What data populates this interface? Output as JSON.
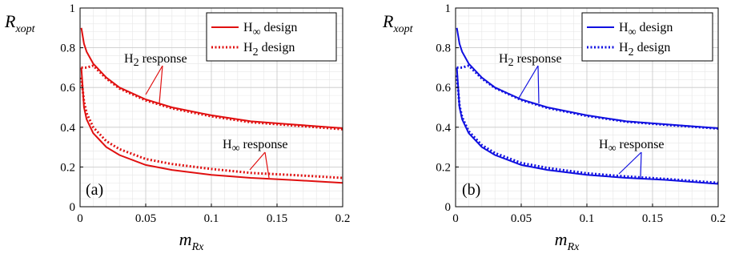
{
  "chart_data": [
    {
      "type": "line",
      "panel_label": "(a)",
      "ylabel": "R",
      "ylabel_sub": "xopt",
      "xlabel": "m",
      "xlabel_sub": "Rx",
      "xlim": [
        0,
        0.2
      ],
      "ylim": [
        0,
        1
      ],
      "x_ticks": [
        "0",
        "0.05",
        "0.1",
        "0.15",
        "0.2"
      ],
      "y_ticks": [
        "0",
        "0.2",
        "0.4",
        "0.6",
        "0.8",
        "1"
      ],
      "grid": true,
      "legend": {
        "placement": "top-right",
        "entries": [
          {
            "prefix": "H",
            "sub": "∞",
            "suffix": " design",
            "style": "solid"
          },
          {
            "prefix": "H",
            "sub": "2",
            "suffix": " design",
            "style": "dotted"
          }
        ]
      },
      "annotations": [
        {
          "prefix": "H",
          "sub": "2",
          "suffix": " response"
        },
        {
          "prefix": "H",
          "sub": "∞",
          "suffix": " response"
        }
      ],
      "color": "#e01010",
      "series": [
        {
          "style": "solid",
          "x": [
            0.001,
            0.003,
            0.005,
            0.01,
            0.02,
            0.03,
            0.05,
            0.07,
            0.1,
            0.13,
            0.16,
            0.2
          ],
          "y": [
            0.9,
            0.82,
            0.78,
            0.72,
            0.65,
            0.6,
            0.54,
            0.5,
            0.46,
            0.43,
            0.415,
            0.395
          ]
        },
        {
          "style": "dotted",
          "x": [
            0.001,
            0.003,
            0.005,
            0.01,
            0.02,
            0.03,
            0.05,
            0.07,
            0.1,
            0.13,
            0.16,
            0.2
          ],
          "y": [
            0.7,
            0.7,
            0.7,
            0.71,
            0.645,
            0.595,
            0.535,
            0.495,
            0.455,
            0.425,
            0.41,
            0.39
          ]
        },
        {
          "style": "solid",
          "x": [
            0.001,
            0.003,
            0.005,
            0.01,
            0.02,
            0.03,
            0.05,
            0.07,
            0.1,
            0.13,
            0.16,
            0.2
          ],
          "y": [
            0.7,
            0.5,
            0.44,
            0.37,
            0.3,
            0.26,
            0.21,
            0.185,
            0.16,
            0.145,
            0.135,
            0.12
          ]
        },
        {
          "style": "dotted",
          "x": [
            0.001,
            0.003,
            0.005,
            0.01,
            0.02,
            0.03,
            0.05,
            0.07,
            0.1,
            0.13,
            0.16,
            0.2
          ],
          "y": [
            0.65,
            0.53,
            0.47,
            0.4,
            0.33,
            0.29,
            0.24,
            0.215,
            0.19,
            0.17,
            0.16,
            0.145
          ]
        }
      ]
    },
    {
      "type": "line",
      "panel_label": "(b)",
      "ylabel": "R",
      "ylabel_sub": "xopt",
      "xlabel": "m",
      "xlabel_sub": "Rx",
      "xlim": [
        0,
        0.2
      ],
      "ylim": [
        0,
        1
      ],
      "x_ticks": [
        "0",
        "0.05",
        "0.1",
        "0.15",
        "0.2"
      ],
      "y_ticks": [
        "0",
        "0.2",
        "0.4",
        "0.6",
        "0.8",
        "1"
      ],
      "grid": true,
      "legend": {
        "placement": "top-right",
        "entries": [
          {
            "prefix": "H",
            "sub": "∞",
            "suffix": " design",
            "style": "solid"
          },
          {
            "prefix": "H",
            "sub": "2",
            "suffix": " design",
            "style": "dotted"
          }
        ]
      },
      "annotations": [
        {
          "prefix": "H",
          "sub": "2",
          "suffix": " response"
        },
        {
          "prefix": "H",
          "sub": "∞",
          "suffix": " response"
        }
      ],
      "color": "#1010e0",
      "series": [
        {
          "style": "solid",
          "x": [
            0.001,
            0.003,
            0.005,
            0.01,
            0.02,
            0.03,
            0.05,
            0.07,
            0.1,
            0.13,
            0.16,
            0.2
          ],
          "y": [
            0.9,
            0.82,
            0.78,
            0.72,
            0.65,
            0.6,
            0.54,
            0.5,
            0.46,
            0.43,
            0.415,
            0.395
          ]
        },
        {
          "style": "dotted",
          "x": [
            0.001,
            0.003,
            0.005,
            0.01,
            0.02,
            0.03,
            0.05,
            0.07,
            0.1,
            0.13,
            0.16,
            0.2
          ],
          "y": [
            0.7,
            0.7,
            0.7,
            0.71,
            0.645,
            0.598,
            0.537,
            0.497,
            0.457,
            0.428,
            0.412,
            0.393
          ]
        },
        {
          "style": "solid",
          "x": [
            0.001,
            0.003,
            0.005,
            0.01,
            0.02,
            0.03,
            0.05,
            0.07,
            0.1,
            0.13,
            0.16,
            0.2
          ],
          "y": [
            0.7,
            0.5,
            0.44,
            0.37,
            0.3,
            0.26,
            0.21,
            0.185,
            0.16,
            0.145,
            0.135,
            0.115
          ]
        },
        {
          "style": "dotted",
          "x": [
            0.001,
            0.003,
            0.005,
            0.01,
            0.02,
            0.03,
            0.05,
            0.07,
            0.1,
            0.13,
            0.16,
            0.2
          ],
          "y": [
            0.66,
            0.51,
            0.45,
            0.38,
            0.31,
            0.27,
            0.22,
            0.195,
            0.168,
            0.152,
            0.14,
            0.12
          ]
        }
      ]
    }
  ]
}
